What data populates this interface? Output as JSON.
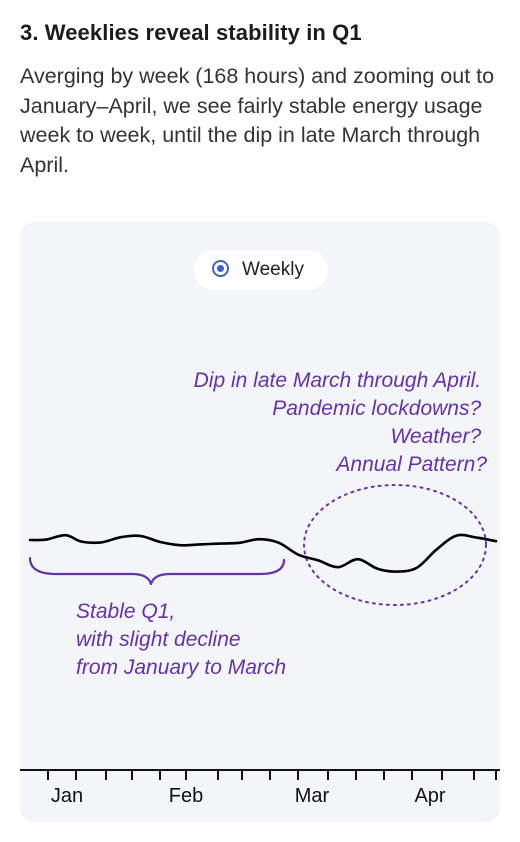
{
  "header": {
    "title": "3. Weeklies reveal stability in Q1",
    "description": "Averging by week (168 hours) and zooming out to January–April, we see fairly stable energy usage week to week, until the dip in late March through April."
  },
  "toggle": {
    "label": "Weekly",
    "selected": true,
    "accent_color": "#3f5fd0"
  },
  "chart_data": {
    "type": "line",
    "title": "",
    "xlabel": "",
    "ylabel": "",
    "x_tick_labels": [
      "Jan",
      "Feb",
      "Mar",
      "Apr"
    ],
    "grid": false,
    "series": [
      {
        "color": "#000000",
        "x": [
          "Jan 1",
          "Jan 5",
          "Jan 10",
          "Jan 14",
          "Jan 19",
          "Jan 24",
          "Jan 29",
          "Feb 3",
          "Feb 8",
          "Feb 13",
          "Feb 18",
          "Feb 23",
          "Feb 28",
          "Mar 4",
          "Mar 9",
          "Mar 14",
          "Mar 19",
          "Mar 24",
          "Mar 29",
          "Apr 3",
          "Apr 8",
          "Apr 13",
          "Apr 18",
          "Apr 23",
          "Apr 28"
        ],
        "values": [
          0.0,
          0.1,
          1.2,
          -0.4,
          -0.6,
          0.7,
          1.0,
          -0.5,
          -1.3,
          -1.1,
          -0.9,
          -0.7,
          0.2,
          -0.7,
          -3.7,
          -5.1,
          -6.8,
          -4.8,
          -7.2,
          -7.9,
          -6.9,
          -2.3,
          1.1,
          0.6,
          -0.3
        ]
      }
    ],
    "annotations": {
      "dip": {
        "lines": [
          "Dip in late March through April.",
          "Pandemic lockdowns?",
          "Weather?",
          "Annual Pattern?"
        ],
        "color": "#6532a8"
      },
      "stable": {
        "lines": [
          "Stable Q1,",
          "with slight decline",
          "from January to March"
        ],
        "color": "#6532a8"
      }
    }
  }
}
